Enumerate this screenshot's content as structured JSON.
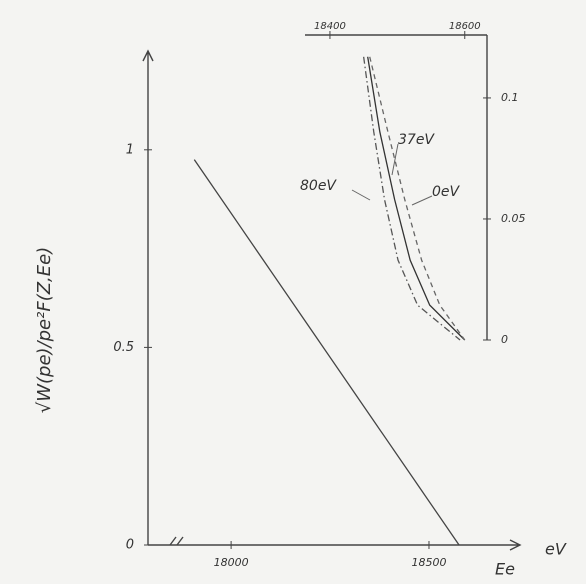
{
  "chart_data": [
    {
      "type": "line",
      "y_label": "√W(pe)/pe²F(Z,Ee)",
      "x_label": "Ee",
      "x_unit": "eV",
      "x": [
        17907,
        18576
      ],
      "values": [
        0.975,
        0
      ],
      "color": "#444",
      "xlim": [
        17790,
        18730
      ],
      "xticks": [
        18000,
        18500
      ],
      "ylim": [
        0,
        1.25
      ],
      "yticks": [
        0,
        0.5,
        1
      ]
    },
    {
      "type": "line",
      "series": [
        {
          "name": "80eV",
          "color": "#555",
          "dash": "dashdot",
          "x": [
            18450,
            18465,
            18481,
            18501,
            18530,
            18593
          ],
          "values": [
            0.117,
            0.086,
            0.058,
            0.033,
            0.0144,
            0
          ]
        },
        {
          "name": "37eV",
          "color": "#333",
          "dash": "solid",
          "x": [
            18456,
            18474,
            18496,
            18519,
            18548,
            18600
          ],
          "values": [
            0.117,
            0.086,
            0.058,
            0.033,
            0.0144,
            0
          ]
        },
        {
          "name": "0eV",
          "color": "#666",
          "dash": "dashed",
          "x": [
            18459,
            18486,
            18511,
            18536,
            18563,
            18600
          ],
          "values": [
            0.117,
            0.086,
            0.058,
            0.033,
            0.0144,
            0
          ]
        }
      ],
      "xlim": [
        18363,
        18633
      ],
      "xticks": [
        18400,
        18600
      ],
      "ylim": [
        0,
        0.126
      ],
      "yticks": [
        0,
        0.05,
        0.1
      ]
    }
  ]
}
